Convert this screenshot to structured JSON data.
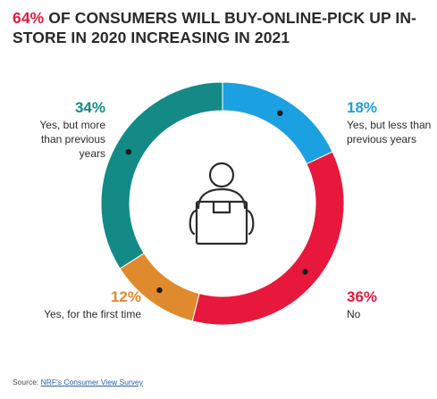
{
  "title": {
    "highlight": "64%",
    "rest": " OF CONSUMERS WILL BUY-ONLINE-PICK UP IN-STORE IN 2020 INCREASING IN 2021"
  },
  "source": {
    "prefix": "Source: ",
    "link": "NRF's Consumer View Survey"
  },
  "icon": "person-holding-package-icon",
  "chart_data": {
    "type": "pie",
    "donut": true,
    "slices": [
      {
        "label": "Yes, but less than previous years",
        "value": 18,
        "pct_text": "18%",
        "color": "#1ba1e2"
      },
      {
        "label": "No",
        "value": 36,
        "pct_text": "36%",
        "color": "#e8183c"
      },
      {
        "label": "Yes, for the first time",
        "value": 12,
        "pct_text": "12%",
        "color": "#e08a2e"
      },
      {
        "label": "Yes, but more than previous years",
        "value": 34,
        "pct_text": "34%",
        "color": "#138a86"
      }
    ]
  }
}
